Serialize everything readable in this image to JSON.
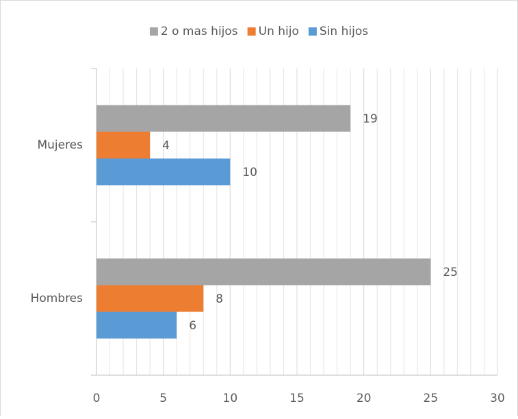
{
  "chart_data": {
    "type": "hbar",
    "categories": [
      "Mujeres",
      "Hombres"
    ],
    "series": [
      {
        "name": "2 o mas hijos",
        "color": "#a5a5a5",
        "values": [
          19,
          25
        ]
      },
      {
        "name": "Un hijo",
        "color": "#ed7d31",
        "values": [
          4,
          8
        ]
      },
      {
        "name": "Sin hijos",
        "color": "#5b9bd5",
        "values": [
          10,
          6
        ]
      }
    ],
    "xlim": [
      0,
      30
    ],
    "xticks": [
      0,
      5,
      10,
      15,
      20,
      25,
      30
    ],
    "grid": true,
    "minor_grid_step": 1,
    "legend": "top",
    "data_labels": true
  }
}
